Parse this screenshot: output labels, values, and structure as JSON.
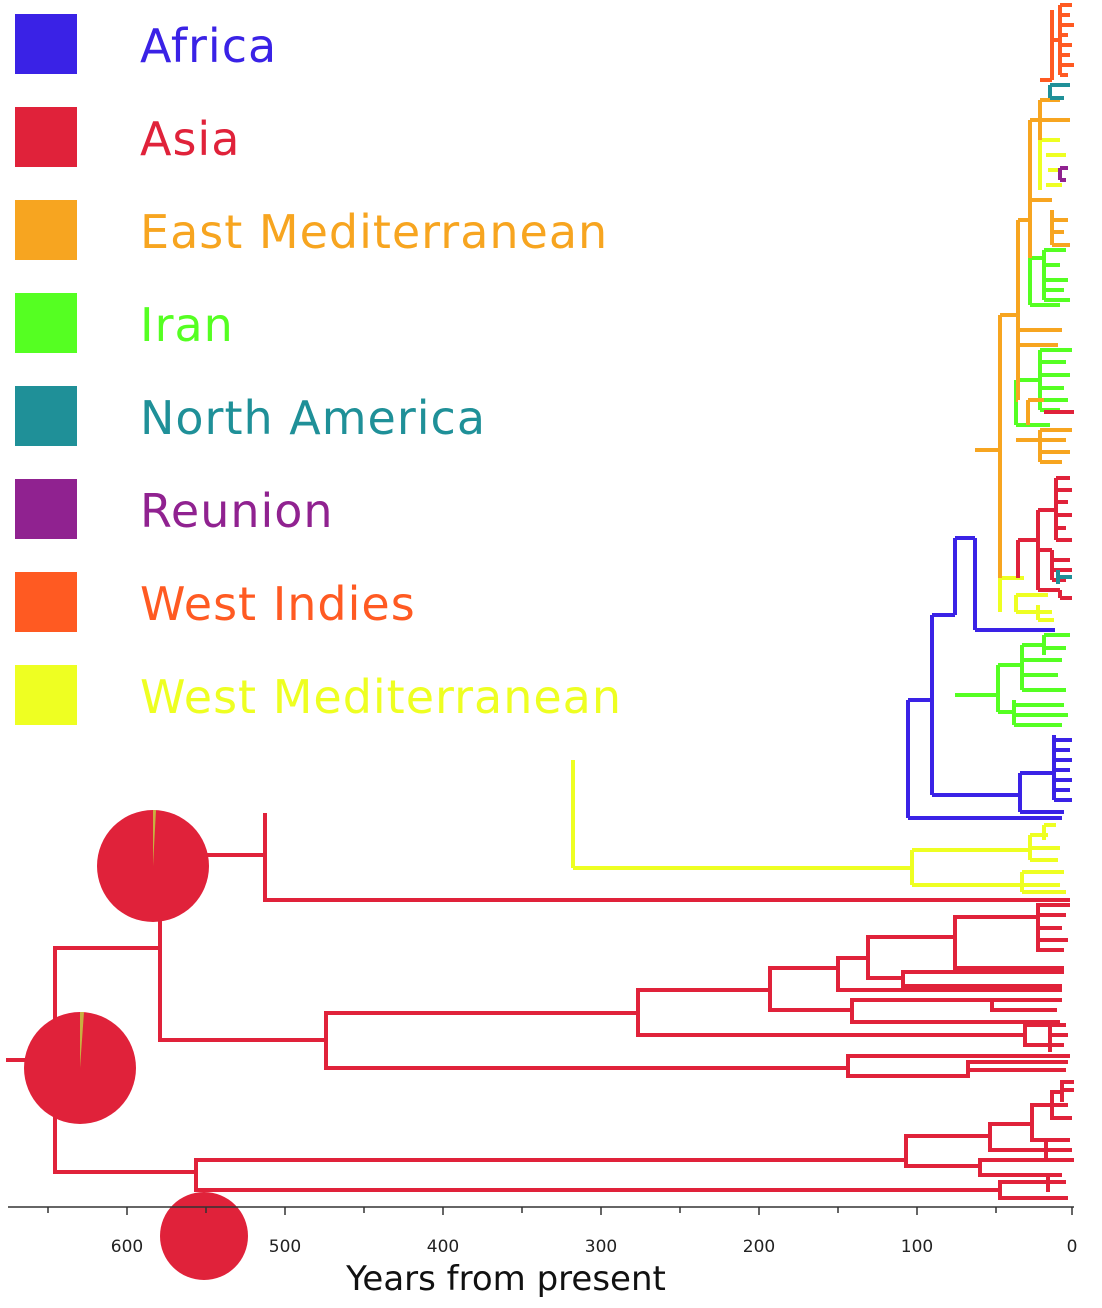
{
  "legend": [
    {
      "label": "Africa",
      "color": "#3a22e6"
    },
    {
      "label": "Asia",
      "color": "#e0223a"
    },
    {
      "label": "East Mediterranean",
      "color": "#f7a520"
    },
    {
      "label": "Iran",
      "color": "#55ff22"
    },
    {
      "label": "North America",
      "color": "#1f9098"
    },
    {
      "label": "Reunion",
      "color": "#902290"
    },
    {
      "label": "West Indies",
      "color": "#ff5a22"
    },
    {
      "label": "West Mediterranean",
      "color": "#eeff22"
    }
  ],
  "axis": {
    "title": "Years from present",
    "ticks": [
      "600",
      "500",
      "400",
      "300",
      "200",
      "100",
      "0"
    ]
  }
}
